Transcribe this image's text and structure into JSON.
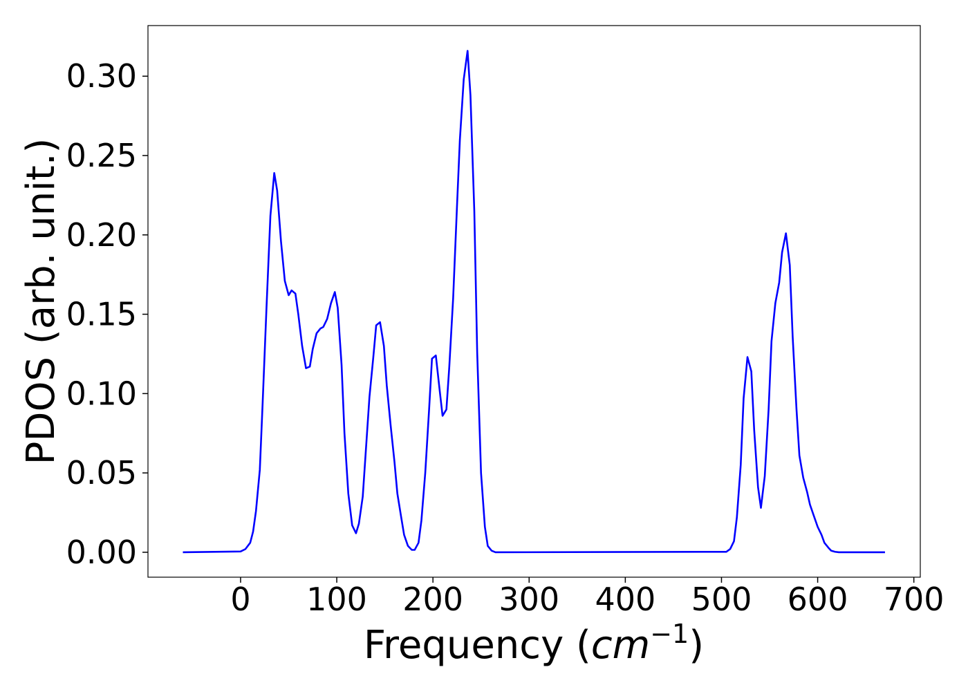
{
  "chart_data": {
    "type": "line",
    "xlabel": [
      "Frequency (",
      "cm",
      "−1",
      ")"
    ],
    "ylabel": "PDOS (arb. unit.)",
    "color": "#0000ff",
    "x": [
      -60,
      0,
      5,
      10,
      13,
      16,
      20,
      23,
      27,
      31,
      35,
      38,
      42,
      46,
      50,
      53,
      57,
      60,
      64,
      68,
      72,
      75,
      79,
      83,
      86,
      90,
      94,
      98,
      101,
      105,
      108,
      112,
      116,
      120,
      123,
      127,
      130,
      134,
      138,
      141,
      145,
      149,
      152,
      156,
      160,
      163,
      167,
      170,
      174,
      178,
      181,
      185,
      188,
      192,
      196,
      199,
      203,
      207,
      210,
      214,
      217,
      221,
      225,
      228,
      232,
      236,
      239,
      243,
      246,
      250,
      254,
      257,
      261,
      265,
      505,
      509,
      513,
      516,
      520,
      523,
      527,
      531,
      534,
      538,
      541,
      545,
      549,
      552,
      556,
      560,
      563,
      567,
      571,
      574,
      578,
      581,
      585,
      589,
      592,
      596,
      600,
      604,
      607,
      611,
      614,
      618,
      622,
      670
    ],
    "values": [
      0,
      0.0005,
      0.002,
      0.006,
      0.013,
      0.026,
      0.052,
      0.095,
      0.155,
      0.212,
      0.239,
      0.228,
      0.196,
      0.171,
      0.162,
      0.165,
      0.163,
      0.15,
      0.13,
      0.116,
      0.117,
      0.128,
      0.138,
      0.141,
      0.142,
      0.147,
      0.157,
      0.164,
      0.154,
      0.118,
      0.075,
      0.037,
      0.017,
      0.012,
      0.018,
      0.035,
      0.062,
      0.098,
      0.123,
      0.143,
      0.145,
      0.13,
      0.105,
      0.08,
      0.057,
      0.037,
      0.022,
      0.011,
      0.004,
      0.0015,
      0.0015,
      0.006,
      0.02,
      0.05,
      0.09,
      0.122,
      0.124,
      0.102,
      0.086,
      0.09,
      0.117,
      0.16,
      0.218,
      0.26,
      0.298,
      0.316,
      0.288,
      0.215,
      0.126,
      0.05,
      0.016,
      0.004,
      0.001,
      0,
      0.0003,
      0.002,
      0.007,
      0.022,
      0.055,
      0.097,
      0.123,
      0.114,
      0.077,
      0.041,
      0.028,
      0.048,
      0.09,
      0.133,
      0.157,
      0.17,
      0.189,
      0.201,
      0.181,
      0.136,
      0.09,
      0.061,
      0.047,
      0.038,
      0.03,
      0.023,
      0.016,
      0.011,
      0.006,
      0.003,
      0.001,
      0.0003,
      0,
      0
    ],
    "xlim": [
      -96.3,
      706.7
    ],
    "ylim": [
      -0.0157,
      0.3319
    ],
    "xticks": [
      0,
      100,
      200,
      300,
      400,
      500,
      600,
      700
    ],
    "yticks": [
      {
        "value": 0,
        "label": "0.00"
      },
      {
        "value": 0.05,
        "label": "0.05"
      },
      {
        "value": 0.1,
        "label": "0.10"
      },
      {
        "value": 0.15,
        "label": "0.15"
      },
      {
        "value": 0.2,
        "label": "0.20"
      },
      {
        "value": 0.25,
        "label": "0.25"
      },
      {
        "value": 0.3,
        "label": "0.30"
      }
    ]
  }
}
